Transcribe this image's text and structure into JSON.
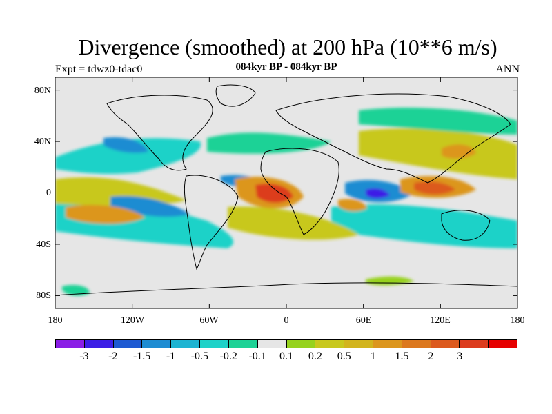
{
  "figure": {
    "title": "Divergence (smoothed) at 200 hPa (10**6 m/s)",
    "subtitle": "084kyr BP - 084kyr BP",
    "left_label": "Expt = tdwz0-tdac0",
    "right_label": "ANN"
  },
  "axes": {
    "lat_ticks": [
      {
        "label": "80N",
        "lat": 80
      },
      {
        "label": "40N",
        "lat": 40
      },
      {
        "label": "0",
        "lat": 0
      },
      {
        "label": "40S",
        "lat": -40
      },
      {
        "label": "80S",
        "lat": -80
      }
    ],
    "lon_ticks": [
      {
        "label": "180",
        "lon": -180
      },
      {
        "label": "120W",
        "lon": -120
      },
      {
        "label": "60W",
        "lon": -60
      },
      {
        "label": "0",
        "lon": 0
      },
      {
        "label": "60E",
        "lon": 60
      },
      {
        "label": "120E",
        "lon": 120
      },
      {
        "label": "180",
        "lon": 180
      }
    ],
    "lon_range": [
      -180,
      180
    ],
    "lat_range": [
      -90,
      90
    ]
  },
  "colorbar": {
    "colors": [
      "#8a1ee6",
      "#3c1ee6",
      "#1e5ad2",
      "#1e8cd2",
      "#1eb4d2",
      "#1ed2c8",
      "#1ed296",
      "#e6e6e6",
      "#96d21e",
      "#c8c81e",
      "#d2b41e",
      "#dc961e",
      "#dc781e",
      "#dc5a1e",
      "#dc3c1e",
      "#e60000"
    ],
    "labels": [
      "-3",
      "-2",
      "-1.5",
      "-1",
      "-0.5",
      "-0.2",
      "-0.1",
      "0.1",
      "0.2",
      "0.5",
      "1",
      "1.5",
      "2",
      "3"
    ]
  },
  "chart_data": {
    "type": "contour-map",
    "title": "Divergence (smoothed) at 200 hPa (10**6 m/s)",
    "subtitle": "084kyr BP - 084kyr BP",
    "projection": "cylindrical equidistant",
    "levels": [
      -3,
      -2,
      -1.5,
      -1,
      -0.5,
      -0.2,
      -0.1,
      0.1,
      0.2,
      0.5,
      1,
      1.5,
      2,
      3
    ],
    "features": [
      {
        "name": "max-atlantic-africa",
        "lon": -12,
        "lat": 0,
        "value": 2.5
      },
      {
        "name": "max-western-pacific",
        "lon": 125,
        "lat": 0,
        "value": 2.0
      },
      {
        "name": "max-indian-ocean-west",
        "lon": 50,
        "lat": -8,
        "value": 1.0
      },
      {
        "name": "min-indian-ocean",
        "lon": 68,
        "lat": 0,
        "value": -2.0
      },
      {
        "name": "min-atlantic-equatorial",
        "lon": -35,
        "lat": 8,
        "value": -1.2
      },
      {
        "name": "min-central-pacific",
        "lon": -130,
        "lat": -10,
        "value": -1.0
      }
    ]
  }
}
